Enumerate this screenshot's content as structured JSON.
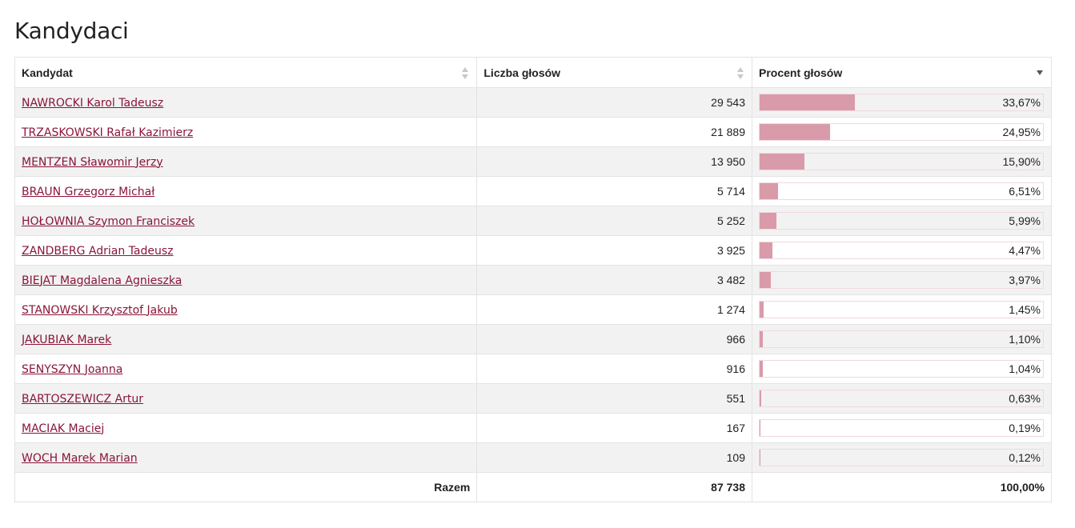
{
  "page_title": "Kandydaci",
  "columns": {
    "name": "Kandydat",
    "votes": "Liczba głosów",
    "percent": "Procent głosów"
  },
  "sort": {
    "column": "percent",
    "direction": "descending"
  },
  "bar_color": "#d99ba9",
  "link_color": "#8a1538",
  "rows": [
    {
      "name": "NAWROCKI Karol Tadeusz",
      "votes": "29 543",
      "percent": "33,67%",
      "share": 33.67
    },
    {
      "name": "TRZASKOWSKI Rafał Kazimierz",
      "votes": "21 889",
      "percent": "24,95%",
      "share": 24.95
    },
    {
      "name": "MENTZEN Sławomir Jerzy",
      "votes": "13 950",
      "percent": "15,90%",
      "share": 15.9
    },
    {
      "name": "BRAUN Grzegorz Michał",
      "votes": "5 714",
      "percent": "6,51%",
      "share": 6.51
    },
    {
      "name": "HOŁOWNIA Szymon Franciszek",
      "votes": "5 252",
      "percent": "5,99%",
      "share": 5.99
    },
    {
      "name": "ZANDBERG Adrian Tadeusz",
      "votes": "3 925",
      "percent": "4,47%",
      "share": 4.47
    },
    {
      "name": "BIEJAT Magdalena Agnieszka",
      "votes": "3 482",
      "percent": "3,97%",
      "share": 3.97
    },
    {
      "name": "STANOWSKI Krzysztof Jakub",
      "votes": "1 274",
      "percent": "1,45%",
      "share": 1.45
    },
    {
      "name": "JAKUBIAK Marek",
      "votes": "966",
      "percent": "1,10%",
      "share": 1.1
    },
    {
      "name": "SENYSZYN Joanna",
      "votes": "916",
      "percent": "1,04%",
      "share": 1.04
    },
    {
      "name": "BARTOSZEWICZ Artur",
      "votes": "551",
      "percent": "0,63%",
      "share": 0.63
    },
    {
      "name": "MACIAK Maciej",
      "votes": "167",
      "percent": "0,19%",
      "share": 0.19
    },
    {
      "name": "WOCH Marek Marian",
      "votes": "109",
      "percent": "0,12%",
      "share": 0.12
    }
  ],
  "total": {
    "label": "Razem",
    "votes": "87 738",
    "percent": "100,00%"
  }
}
